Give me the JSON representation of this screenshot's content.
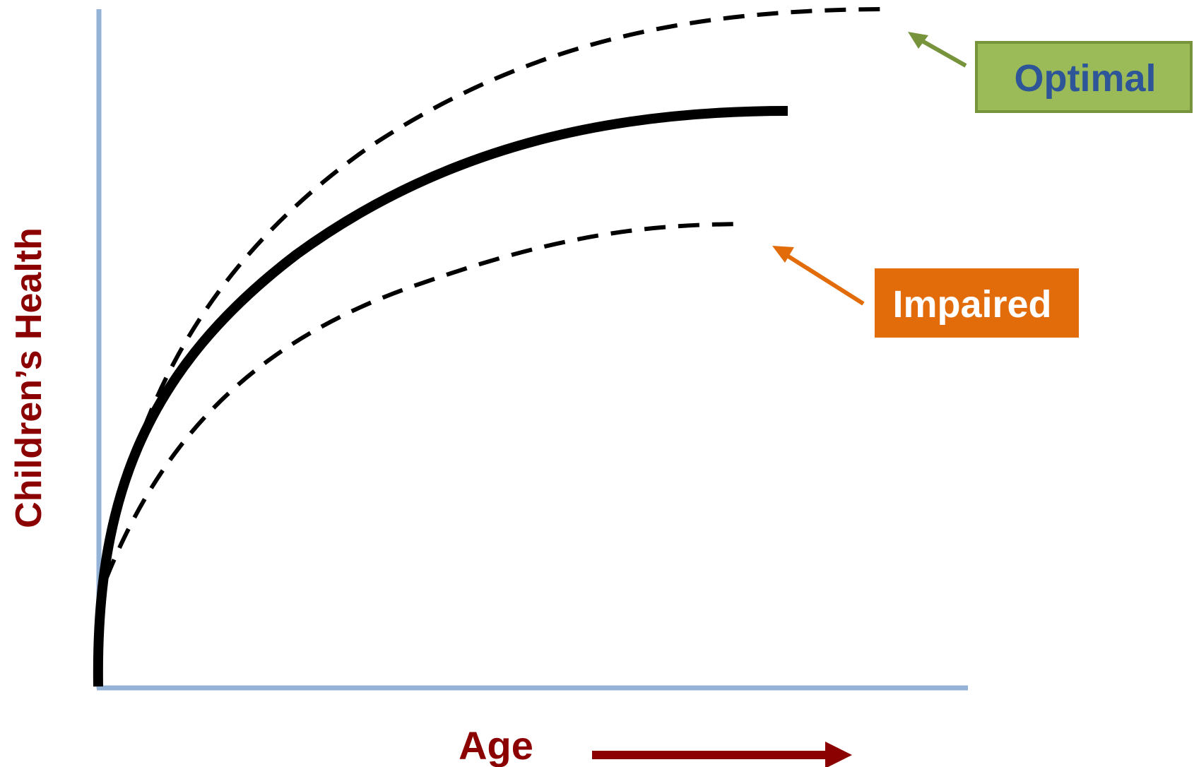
{
  "y_axis": {
    "label": "Children’s  Health"
  },
  "x_axis": {
    "label": "Age"
  },
  "callouts": {
    "optimal": {
      "label": "Optimal"
    },
    "impaired": {
      "label": "Impaired"
    }
  },
  "colors": {
    "axis": "#95b3d7",
    "axis_label": "#8b0000",
    "curve": "#000000",
    "optimal_fill": "#9bbb59",
    "optimal_border": "#77933c",
    "optimal_text": "#2e5597",
    "impaired_fill": "#e36c0a",
    "impaired_text": "#ffffff"
  }
}
